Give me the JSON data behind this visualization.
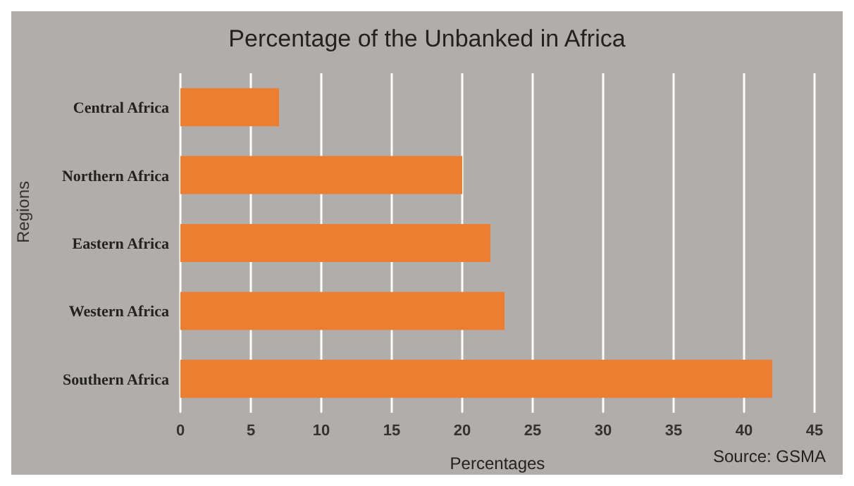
{
  "chart_data": {
    "type": "bar",
    "orientation": "horizontal",
    "title": "Percentage of the Unbanked in Africa",
    "xlabel": "Percentages",
    "ylabel": "Regions",
    "categories": [
      "Central Africa",
      "Northern Africa",
      "Eastern Africa",
      "Western Africa",
      "Southern Africa"
    ],
    "values": [
      7,
      20,
      22,
      23,
      42
    ],
    "color": "#ed7d31",
    "xlim": [
      0,
      45
    ],
    "xticks": [
      0,
      5,
      10,
      15,
      20,
      25,
      30,
      35,
      40,
      45
    ],
    "grid": "x",
    "annotations": [
      "Source: GSMA"
    ]
  }
}
